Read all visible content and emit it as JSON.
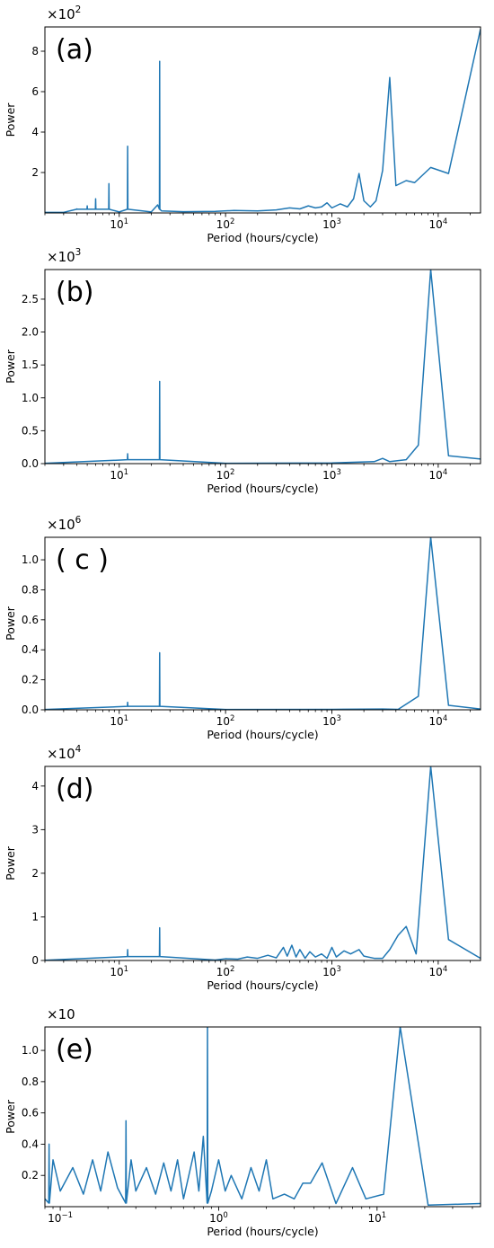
{
  "chart_data": [
    {
      "type": "line",
      "panel_label": "(a)",
      "scale_label": "×10",
      "scale_exp": "2",
      "xlabel": "Period (hours/cycle)",
      "ylabel": "Power",
      "xscale": "log",
      "xlim": [
        2,
        25000
      ],
      "ylim": [
        0,
        9.2
      ],
      "yticks": [
        {
          "v": 2,
          "t": "2"
        },
        {
          "v": 4,
          "t": "4"
        },
        {
          "v": 6,
          "t": "6"
        },
        {
          "v": 8,
          "t": "8"
        }
      ],
      "xticks": [
        {
          "v": 10,
          "t": "1"
        },
        {
          "v": 100,
          "t": "2"
        },
        {
          "v": 1000,
          "t": "3"
        },
        {
          "v": 10000,
          "t": "4"
        }
      ],
      "xtick_base": "10",
      "series": [
        {
          "color": "#1f77b4",
          "spikes": [
            [
              4,
              0.2
            ],
            [
              5,
              0.35
            ],
            [
              6,
              0.7
            ],
            [
              8,
              1.45
            ],
            [
              12,
              3.3
            ],
            [
              24,
              7.5
            ]
          ],
          "points": [
            [
              2,
              0.03
            ],
            [
              3,
              0.03
            ],
            [
              10,
              0.05
            ],
            [
              20,
              0.05
            ],
            [
              23,
              0.4
            ],
            [
              25,
              0.1
            ],
            [
              40,
              0.06
            ],
            [
              80,
              0.08
            ],
            [
              120,
              0.12
            ],
            [
              200,
              0.1
            ],
            [
              300,
              0.15
            ],
            [
              400,
              0.25
            ],
            [
              500,
              0.2
            ],
            [
              600,
              0.35
            ],
            [
              700,
              0.25
            ],
            [
              800,
              0.3
            ],
            [
              900,
              0.5
            ],
            [
              1000,
              0.25
            ],
            [
              1200,
              0.45
            ],
            [
              1400,
              0.3
            ],
            [
              1600,
              0.7
            ],
            [
              1800,
              1.95
            ],
            [
              2000,
              0.6
            ],
            [
              2300,
              0.3
            ],
            [
              2600,
              0.6
            ],
            [
              3000,
              2.1
            ],
            [
              3500,
              6.7
            ],
            [
              4000,
              1.35
            ],
            [
              5000,
              1.6
            ],
            [
              6000,
              1.5
            ],
            [
              8500,
              2.25
            ],
            [
              12500,
              1.95
            ],
            [
              25000,
              9.1
            ]
          ]
        }
      ]
    },
    {
      "type": "line",
      "panel_label": "(b)",
      "scale_label": "×10",
      "scale_exp": "3",
      "xlabel": "Period (hours/cycle)",
      "ylabel": "Power",
      "xscale": "log",
      "xlim": [
        2,
        25000
      ],
      "ylim": [
        0,
        2.95
      ],
      "yticks": [
        {
          "v": 0,
          "t": "0.0"
        },
        {
          "v": 0.5,
          "t": "0.5"
        },
        {
          "v": 1.0,
          "t": "1.0"
        },
        {
          "v": 1.5,
          "t": "1.5"
        },
        {
          "v": 2.0,
          "t": "2.0"
        },
        {
          "v": 2.5,
          "t": "2.5"
        }
      ],
      "xticks": [
        {
          "v": 10,
          "t": "1"
        },
        {
          "v": 100,
          "t": "2"
        },
        {
          "v": 1000,
          "t": "3"
        },
        {
          "v": 10000,
          "t": "4"
        }
      ],
      "xtick_base": "10",
      "series": [
        {
          "color": "#1f77b4",
          "spikes": [
            [
              12,
              0.15
            ],
            [
              24,
              1.25
            ]
          ],
          "points": [
            [
              2,
              0.005
            ],
            [
              100,
              0.005
            ],
            [
              1000,
              0.01
            ],
            [
              2500,
              0.03
            ],
            [
              3000,
              0.08
            ],
            [
              3500,
              0.03
            ],
            [
              5000,
              0.06
            ],
            [
              6500,
              0.28
            ],
            [
              8500,
              2.95
            ],
            [
              12500,
              0.12
            ],
            [
              25000,
              0.07
            ]
          ]
        }
      ]
    },
    {
      "type": "line",
      "panel_label": "( c )",
      "scale_label": "×10",
      "scale_exp": "6",
      "xlabel": "Period (hours/cycle)",
      "ylabel": "Power",
      "xscale": "log",
      "xlim": [
        2,
        25000
      ],
      "ylim": [
        0,
        1.15
      ],
      "yticks": [
        {
          "v": 0,
          "t": "0.0"
        },
        {
          "v": 0.2,
          "t": "0.2"
        },
        {
          "v": 0.4,
          "t": "0.4"
        },
        {
          "v": 0.6,
          "t": "0.6"
        },
        {
          "v": 0.8,
          "t": "0.8"
        },
        {
          "v": 1.0,
          "t": "1.0"
        }
      ],
      "xticks": [
        {
          "v": 10,
          "t": "1"
        },
        {
          "v": 100,
          "t": "2"
        },
        {
          "v": 1000,
          "t": "3"
        },
        {
          "v": 10000,
          "t": "4"
        }
      ],
      "xtick_base": "10",
      "series": [
        {
          "color": "#1f77b4",
          "spikes": [
            [
              12,
              0.05
            ],
            [
              24,
              0.38
            ]
          ],
          "points": [
            [
              2,
              0.002
            ],
            [
              100,
              0.002
            ],
            [
              1000,
              0.003
            ],
            [
              3000,
              0.005
            ],
            [
              4200,
              0.003
            ],
            [
              6500,
              0.09
            ],
            [
              8500,
              1.15
            ],
            [
              12500,
              0.03
            ],
            [
              25000,
              0.005
            ]
          ]
        }
      ]
    },
    {
      "type": "line",
      "panel_label": "(d)",
      "scale_label": "×10",
      "scale_exp": "4",
      "xlabel": "Period (hours/cycle)",
      "ylabel": "Power",
      "xscale": "log",
      "xlim": [
        2,
        25000
      ],
      "ylim": [
        0,
        4.45
      ],
      "yticks": [
        {
          "v": 0,
          "t": "0"
        },
        {
          "v": 1,
          "t": "1"
        },
        {
          "v": 2,
          "t": "2"
        },
        {
          "v": 3,
          "t": "3"
        },
        {
          "v": 4,
          "t": "4"
        }
      ],
      "xticks": [
        {
          "v": 10,
          "t": "1"
        },
        {
          "v": 100,
          "t": "2"
        },
        {
          "v": 1000,
          "t": "3"
        },
        {
          "v": 10000,
          "t": "4"
        }
      ],
      "xtick_base": "10",
      "series": [
        {
          "color": "#1f77b4",
          "spikes": [
            [
              12,
              0.25
            ],
            [
              24,
              0.75
            ]
          ],
          "points": [
            [
              2,
              0.005
            ],
            [
              80,
              0.01
            ],
            [
              100,
              0.04
            ],
            [
              130,
              0.03
            ],
            [
              160,
              0.08
            ],
            [
              200,
              0.05
            ],
            [
              250,
              0.12
            ],
            [
              300,
              0.06
            ],
            [
              350,
              0.3
            ],
            [
              380,
              0.1
            ],
            [
              420,
              0.35
            ],
            [
              460,
              0.08
            ],
            [
              500,
              0.25
            ],
            [
              560,
              0.05
            ],
            [
              620,
              0.2
            ],
            [
              700,
              0.08
            ],
            [
              800,
              0.15
            ],
            [
              900,
              0.05
            ],
            [
              1000,
              0.3
            ],
            [
              1100,
              0.08
            ],
            [
              1300,
              0.22
            ],
            [
              1500,
              0.15
            ],
            [
              1800,
              0.25
            ],
            [
              2000,
              0.1
            ],
            [
              2500,
              0.05
            ],
            [
              3000,
              0.05
            ],
            [
              3500,
              0.25
            ],
            [
              4200,
              0.58
            ],
            [
              5000,
              0.78
            ],
            [
              6200,
              0.15
            ],
            [
              8500,
              4.45
            ],
            [
              12500,
              0.48
            ],
            [
              25000,
              0.05
            ]
          ]
        }
      ]
    },
    {
      "type": "line",
      "panel_label": "(e)",
      "scale_label": "×10",
      "scale_exp": "",
      "xlabel": "Period (hours/cycle)",
      "ylabel": "Power",
      "xscale": "log",
      "xlim": [
        0.08,
        45
      ],
      "ylim": [
        0,
        1.15
      ],
      "yticks": [
        {
          "v": 0.2,
          "t": "0.2"
        },
        {
          "v": 0.4,
          "t": "0.4"
        },
        {
          "v": 0.6,
          "t": "0.6"
        },
        {
          "v": 0.8,
          "t": "0.8"
        },
        {
          "v": 1.0,
          "t": "1.0"
        }
      ],
      "xticks": [
        {
          "v": 0.1,
          "t": "−1"
        },
        {
          "v": 1,
          "t": "0"
        },
        {
          "v": 10,
          "t": "1"
        }
      ],
      "xtick_base": "10",
      "series": [
        {
          "color": "#1f77b4",
          "spikes": [
            [
              0.085,
              0.4
            ],
            [
              0.26,
              0.55
            ],
            [
              0.85,
              1.15
            ]
          ],
          "points": [
            [
              0.08,
              0.05
            ],
            [
              0.09,
              0.3
            ],
            [
              0.1,
              0.1
            ],
            [
              0.12,
              0.25
            ],
            [
              0.14,
              0.08
            ],
            [
              0.16,
              0.3
            ],
            [
              0.18,
              0.1
            ],
            [
              0.2,
              0.35
            ],
            [
              0.23,
              0.12
            ],
            [
              0.28,
              0.3
            ],
            [
              0.3,
              0.1
            ],
            [
              0.35,
              0.25
            ],
            [
              0.4,
              0.08
            ],
            [
              0.45,
              0.28
            ],
            [
              0.5,
              0.1
            ],
            [
              0.55,
              0.3
            ],
            [
              0.6,
              0.05
            ],
            [
              0.7,
              0.35
            ],
            [
              0.75,
              0.1
            ],
            [
              0.8,
              0.45
            ],
            [
              0.9,
              0.1
            ],
            [
              1.0,
              0.3
            ],
            [
              1.1,
              0.1
            ],
            [
              1.2,
              0.2
            ],
            [
              1.4,
              0.05
            ],
            [
              1.6,
              0.25
            ],
            [
              1.8,
              0.1
            ],
            [
              2.0,
              0.3
            ],
            [
              2.2,
              0.05
            ],
            [
              2.6,
              0.08
            ],
            [
              3.0,
              0.05
            ],
            [
              3.4,
              0.15
            ],
            [
              3.8,
              0.15
            ],
            [
              4.5,
              0.28
            ],
            [
              5.5,
              0.02
            ],
            [
              7.0,
              0.25
            ],
            [
              8.5,
              0.05
            ],
            [
              11,
              0.08
            ],
            [
              14,
              1.15
            ],
            [
              21,
              0.01
            ],
            [
              45,
              0.02
            ]
          ]
        }
      ]
    }
  ]
}
